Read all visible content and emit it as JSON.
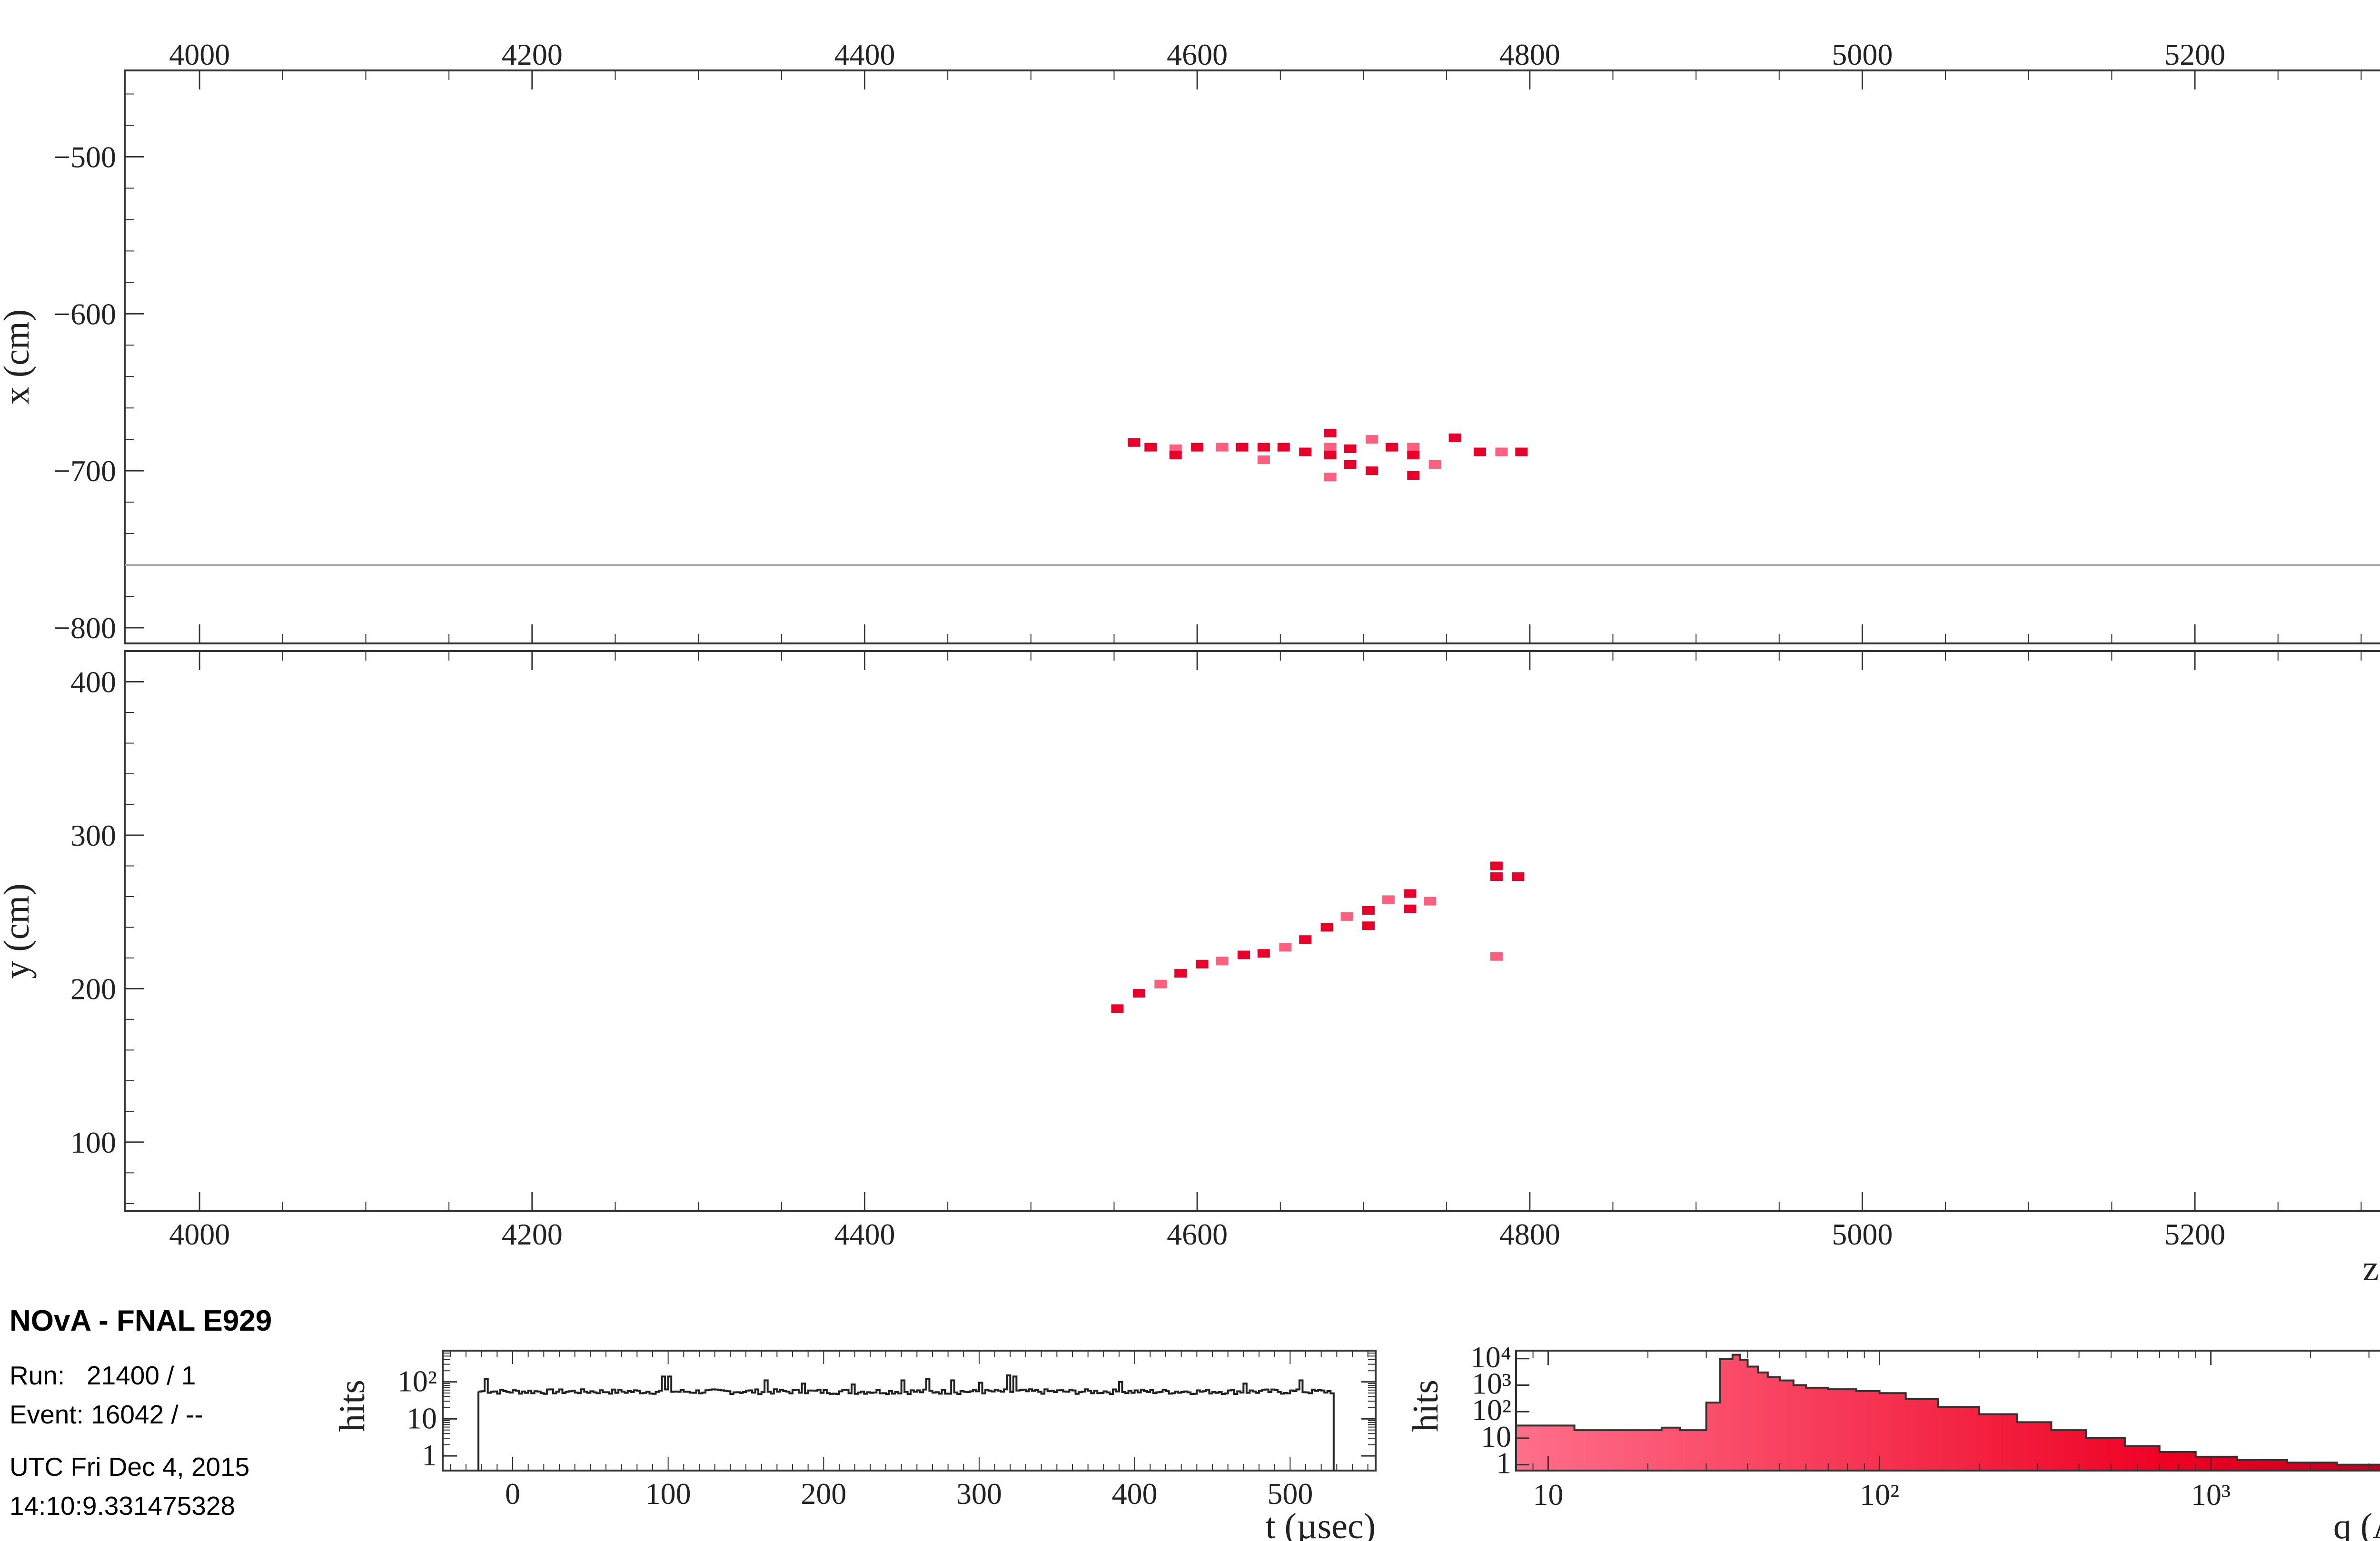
{
  "info": {
    "title": "NOvA - FNAL E929",
    "run_label": "Run:",
    "run_value": "21400 / 1",
    "event_label": "Event:",
    "event_value": "16042 / --",
    "date": "UTC Fri Dec 4, 2015",
    "time": "14:10:9.331475328"
  },
  "chart_data": [
    {
      "name": "xz-view",
      "type": "scatter",
      "xlabel": "",
      "ylabel": "x (cm)",
      "xlim": [
        3955,
        5360
      ],
      "ylim": [
        -810,
        -445
      ],
      "xticks": [
        4000,
        4200,
        4400,
        4600,
        4800,
        5000,
        5200
      ],
      "yticks": [
        -500,
        -600,
        -700,
        -800
      ],
      "ytick_labels": [
        "−500",
        "−600",
        "−700",
        "−800"
      ],
      "hline": -760,
      "colors": {
        "hit": "#e8002a",
        "hit_light": "#ff6080"
      },
      "points": [
        [
          4562,
          -682
        ],
        [
          4572,
          -685
        ],
        [
          4587,
          -686
        ],
        [
          4587,
          -690
        ],
        [
          4600,
          -685
        ],
        [
          4615,
          -685
        ],
        [
          4627,
          -685
        ],
        [
          4640,
          -685
        ],
        [
          4640,
          -693
        ],
        [
          4652,
          -685
        ],
        [
          4665,
          -688
        ],
        [
          4680,
          -685
        ],
        [
          4680,
          -690
        ],
        [
          4680,
          -676
        ],
        [
          4680,
          -704
        ],
        [
          4692,
          -686
        ],
        [
          4692,
          -696
        ],
        [
          4705,
          -680
        ],
        [
          4705,
          -700
        ],
        [
          4717,
          -685
        ],
        [
          4730,
          -685
        ],
        [
          4730,
          -690
        ],
        [
          4730,
          -703
        ],
        [
          4743,
          -696
        ],
        [
          4755,
          -679
        ],
        [
          4770,
          -688
        ],
        [
          4783,
          -688
        ],
        [
          4795,
          -688
        ]
      ]
    },
    {
      "name": "yz-view",
      "type": "scatter",
      "xlabel": "z (cm)",
      "ylabel": "y (cm)",
      "xlim": [
        3955,
        5360
      ],
      "ylim": [
        55,
        420
      ],
      "xticks": [
        4000,
        4200,
        4400,
        4600,
        4800,
        5000,
        5200
      ],
      "yticks": [
        400,
        300,
        200,
        100
      ],
      "colors": {
        "hit": "#e8002a",
        "hit_light": "#ff6080"
      },
      "points": [
        [
          4552,
          187
        ],
        [
          4565,
          197
        ],
        [
          4578,
          203
        ],
        [
          4590,
          210
        ],
        [
          4603,
          216
        ],
        [
          4615,
          218
        ],
        [
          4628,
          222
        ],
        [
          4640,
          223
        ],
        [
          4653,
          227
        ],
        [
          4665,
          232
        ],
        [
          4678,
          240
        ],
        [
          4690,
          247
        ],
        [
          4703,
          251
        ],
        [
          4703,
          241
        ],
        [
          4715,
          258
        ],
        [
          4728,
          262
        ],
        [
          4728,
          252
        ],
        [
          4740,
          257
        ],
        [
          4780,
          280
        ],
        [
          4780,
          273
        ],
        [
          4780,
          221
        ],
        [
          4793,
          273
        ]
      ]
    },
    {
      "name": "time-histogram",
      "type": "histogram",
      "xlabel": "t (µsec)",
      "ylabel": "hits",
      "xlim": [
        -45,
        555
      ],
      "ylim": [
        0.4,
        700
      ],
      "y_scale": "log",
      "xticks": [
        0,
        100,
        200,
        300,
        400,
        500
      ],
      "yticks": [
        1,
        10,
        100
      ],
      "ytick_labels": [
        "1",
        "10",
        "10²"
      ],
      "range": [
        -22,
        528
      ],
      "baseline": 55,
      "spikes": [
        [
          -18,
          120
        ],
        [
          95,
          140
        ],
        [
          100,
          140
        ],
        [
          162,
          110
        ],
        [
          185,
          90
        ],
        [
          217,
          85
        ],
        [
          250,
          110
        ],
        [
          265,
          120
        ],
        [
          282,
          110
        ],
        [
          300,
          95
        ],
        [
          318,
          150
        ],
        [
          322,
          140
        ],
        [
          390,
          100
        ],
        [
          470,
          90
        ],
        [
          505,
          110
        ]
      ]
    },
    {
      "name": "charge-histogram",
      "type": "histogram",
      "xlabel": "q (ADC)",
      "ylabel": "hits",
      "x_scale": "log",
      "y_scale": "log",
      "xlim": [
        8,
        5500
      ],
      "ylim": [
        0.6,
        20000
      ],
      "xticks": [
        10,
        100,
        1000
      ],
      "xtick_labels": [
        "10",
        "10²",
        "10³"
      ],
      "yticks": [
        1,
        10,
        100,
        1000,
        10000
      ],
      "ytick_labels": [
        "1",
        "10",
        "10²",
        "10³",
        "10⁴"
      ],
      "colors": {
        "low": "#ff6f8a",
        "high": "#ee0022"
      },
      "bins": [
        [
          8,
          12,
          30
        ],
        [
          12,
          18,
          20
        ],
        [
          18,
          22,
          20
        ],
        [
          22,
          25,
          25
        ],
        [
          25,
          30,
          20
        ],
        [
          30,
          33,
          220
        ],
        [
          33,
          36,
          9500
        ],
        [
          36,
          38,
          14000
        ],
        [
          38,
          40,
          9000
        ],
        [
          40,
          43,
          5000
        ],
        [
          43,
          46,
          3000
        ],
        [
          46,
          50,
          2000
        ],
        [
          50,
          55,
          1500
        ],
        [
          55,
          60,
          1000
        ],
        [
          60,
          70,
          800
        ],
        [
          70,
          85,
          700
        ],
        [
          85,
          100,
          600
        ],
        [
          100,
          120,
          500
        ],
        [
          120,
          150,
          300
        ],
        [
          150,
          200,
          150
        ],
        [
          200,
          260,
          80
        ],
        [
          260,
          330,
          40
        ],
        [
          330,
          420,
          20
        ],
        [
          420,
          550,
          10
        ],
        [
          550,
          700,
          5
        ],
        [
          700,
          900,
          3
        ],
        [
          900,
          1200,
          2
        ],
        [
          1200,
          1700,
          1.5
        ],
        [
          1700,
          2400,
          1.2
        ],
        [
          2400,
          5500,
          1
        ]
      ]
    }
  ]
}
